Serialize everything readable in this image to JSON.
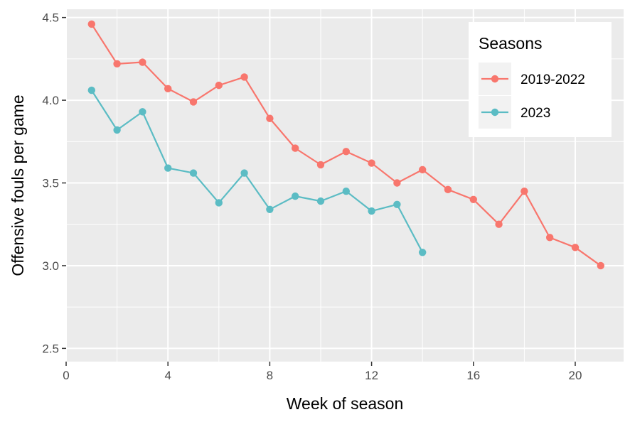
{
  "chart_data": {
    "type": "line",
    "xlabel": "Week of season",
    "ylabel": "Offensive fouls per game",
    "xlim": [
      0,
      21.9
    ],
    "ylim": [
      2.42,
      4.55
    ],
    "x_ticks": [
      0,
      4,
      8,
      12,
      16,
      20
    ],
    "y_ticks": [
      2.5,
      3.0,
      3.5,
      4.0,
      4.5
    ],
    "x_tick_labels": [
      "0",
      "4",
      "8",
      "12",
      "16",
      "20"
    ],
    "y_tick_labels": [
      "2.5",
      "3.0",
      "3.5",
      "4.0",
      "4.5"
    ],
    "grid": true,
    "legend": {
      "title": "Seasons",
      "position": "top-right"
    },
    "series": [
      {
        "name": "2019-2022",
        "color": "#F8766D",
        "x": [
          1,
          2,
          3,
          4,
          5,
          6,
          7,
          8,
          9,
          10,
          11,
          12,
          13,
          14,
          15,
          16,
          17,
          18,
          19,
          20,
          21
        ],
        "values": [
          4.46,
          4.22,
          4.23,
          4.07,
          3.99,
          4.09,
          4.14,
          3.89,
          3.71,
          3.61,
          3.69,
          3.62,
          3.5,
          3.58,
          3.46,
          3.4,
          3.25,
          3.45,
          3.17,
          3.11,
          3.0
        ]
      },
      {
        "name": "2023",
        "color": "#5BBCC4",
        "x": [
          1,
          2,
          3,
          4,
          5,
          6,
          7,
          8,
          9,
          10,
          11,
          12,
          13,
          14
        ],
        "values": [
          4.06,
          3.82,
          3.93,
          3.59,
          3.56,
          3.38,
          3.56,
          3.34,
          3.42,
          3.39,
          3.45,
          3.33,
          3.37,
          3.08
        ]
      }
    ]
  }
}
